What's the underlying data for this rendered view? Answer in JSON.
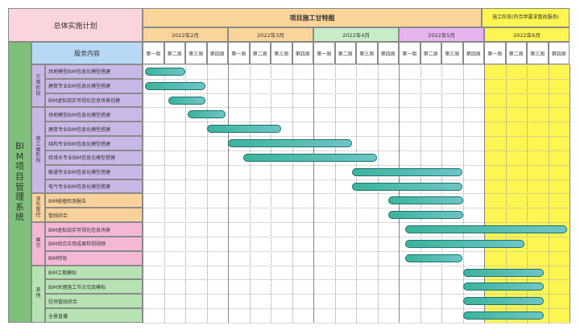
{
  "header": {
    "overall_plan": "总体实施计划",
    "project_title": "项目施工甘特图",
    "service_content": "服务内容",
    "construction_note": "施工阶段(符合甲要求整改服务)",
    "months": [
      "2022年2月",
      "2022年3月",
      "2022年4月",
      "2022年5月",
      "2022年6月"
    ],
    "weeks": [
      "第一周",
      "第二周",
      "第三周",
      "第四周"
    ]
  },
  "side_title": "BIM项目管理系统",
  "phases": [
    {
      "name": "方案阶段",
      "rows": 3,
      "color": "#c9b8e6"
    },
    {
      "name": "施工图阶段",
      "rows": 6,
      "color": "#c9b8e6"
    },
    {
      "name": "深化管控",
      "rows": 2,
      "color": "#f9d29b"
    },
    {
      "name": "展示",
      "rows": 3,
      "color": "#f4b8d6"
    },
    {
      "name": "其他",
      "rows": 4,
      "color": "#b7e3b4"
    }
  ],
  "tasks": [
    "场地模型BIM信息化模型搭建",
    "建筑专业BIM信息化模型搭建",
    "BIM虚拟现实可视化信息场景创建",
    "场地模型BIM信息化模型搭建",
    "建筑专业BIM信息化模型搭建",
    "结构专业BIM信息化模型搭建",
    "给排水专业BIM信息化模型搭建",
    "暖通专业BIM信息化模型搭建",
    "电气专业BIM信息化模型搭建",
    "BIM碰撞检测报告",
    "管线综合",
    "BIM虚拟现实可视化信息场景",
    "BIM综合应用成果检视视频",
    "BIM特效",
    "BIM工期模拟",
    "BIM关键施工节点交底模拟",
    "驻场管线综合",
    "全景直播"
  ],
  "chart_data": {
    "type": "gantt",
    "unit": "week",
    "total_weeks": 20,
    "bars": [
      {
        "task": 0,
        "start": 0.1,
        "end": 2.0
      },
      {
        "task": 1,
        "start": 0.1,
        "end": 2.95
      },
      {
        "task": 2,
        "start": 1.2,
        "end": 2.95
      },
      {
        "task": 3,
        "start": 2.1,
        "end": 3.9
      },
      {
        "task": 4,
        "start": 3.0,
        "end": 6.5
      },
      {
        "task": 5,
        "start": 4.0,
        "end": 9.8
      },
      {
        "task": 6,
        "start": 4.7,
        "end": 11.0
      },
      {
        "task": 7,
        "start": 9.8,
        "end": 15.0
      },
      {
        "task": 8,
        "start": 9.8,
        "end": 15.0
      },
      {
        "task": 9,
        "start": 11.5,
        "end": 15.0
      },
      {
        "task": 10,
        "start": 11.5,
        "end": 15.0
      },
      {
        "task": 11,
        "start": 12.3,
        "end": 19.9
      },
      {
        "task": 12,
        "start": 12.3,
        "end": 17.9
      },
      {
        "task": 13,
        "start": 12.3,
        "end": 15.0
      },
      {
        "task": 14,
        "start": 15.0,
        "end": 18.8
      },
      {
        "task": 15,
        "start": 15.0,
        "end": 18.8
      },
      {
        "task": 16,
        "start": 15.0,
        "end": 18.8
      },
      {
        "task": 17,
        "start": 15.0,
        "end": 18.8
      }
    ]
  },
  "colors": {
    "title_bg": "#fad5dc",
    "project_title_bg": "#fbd49a",
    "service_bg": "#b7d9f6",
    "side_title_bg": "#7ec07a",
    "construction_bg": "#fcf552",
    "month_colors": [
      "#fbd49a",
      "#fbd49a",
      "#c9ecc8",
      "#e7b4f0",
      "#fcf552"
    ],
    "bar": "#5cc0aa"
  }
}
